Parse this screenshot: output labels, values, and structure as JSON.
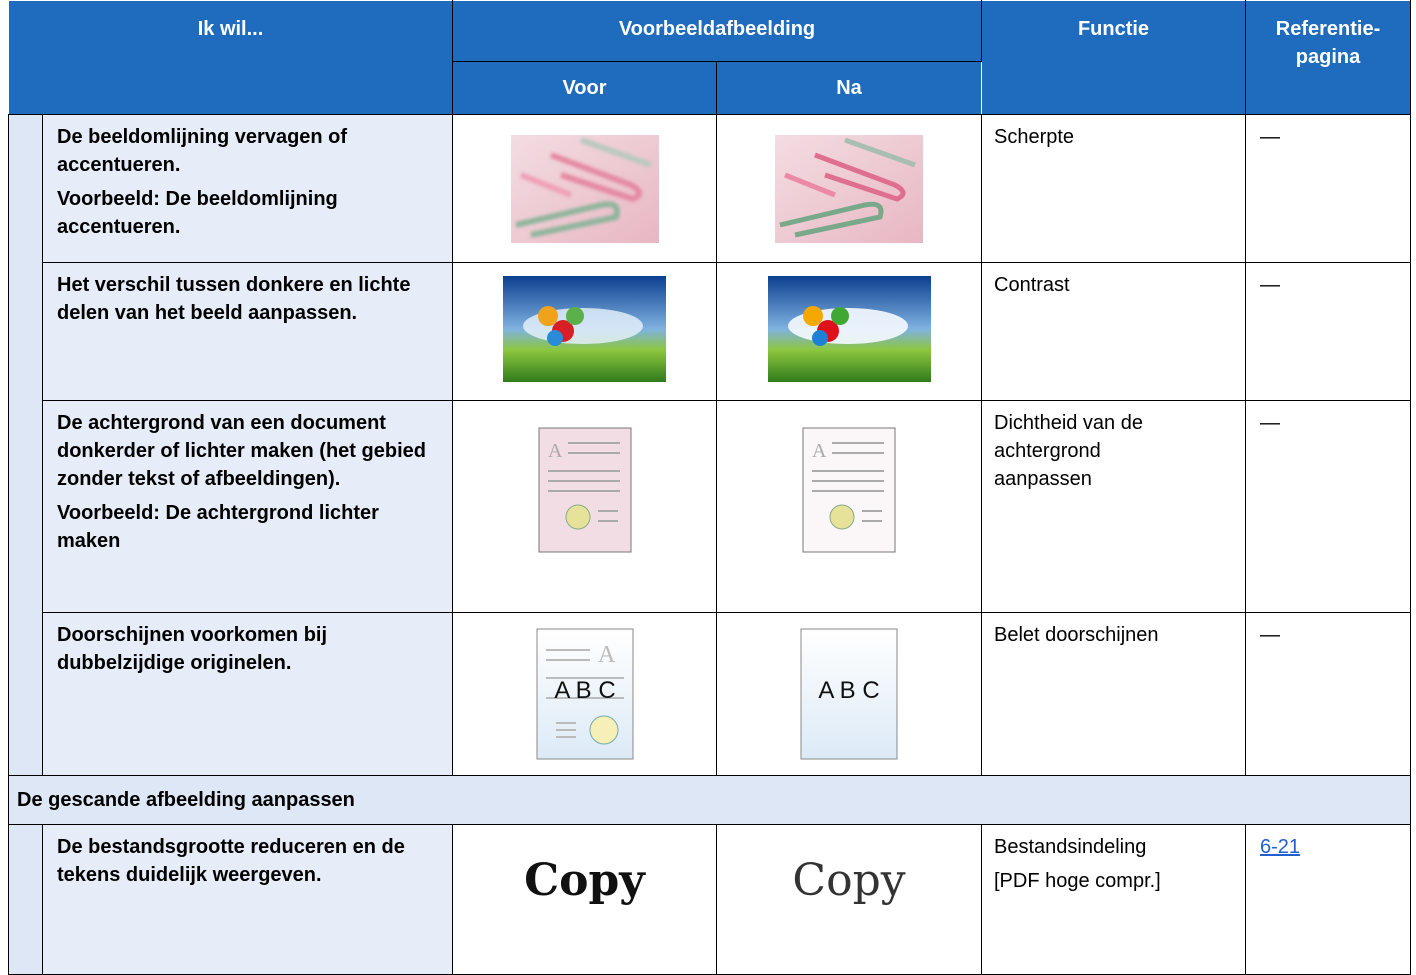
{
  "header": {
    "want": "Ik wil...",
    "example": "Voorbeeldafbeelding",
    "before": "Voor",
    "after": "Na",
    "function": "Functie",
    "reference": [
      "Referentie-",
      "pagina"
    ]
  },
  "rows": [
    {
      "want": [
        "De beeldomlijning vervagen of accentueren.",
        "Voorbeeld: De beeldomlijning accentueren."
      ],
      "function": [
        "Scherpte"
      ],
      "reference": "—"
    },
    {
      "want": [
        "Het verschil tussen donkere en lichte delen van het beeld aanpassen."
      ],
      "function": [
        "Contrast"
      ],
      "reference": "—"
    },
    {
      "want": [
        "De achtergrond van een document donkerder of lichter maken (het gebied zonder tekst of afbeeldingen).",
        "Voorbeeld: De achtergrond lichter maken"
      ],
      "function": [
        "Dichtheid van de achtergrond aanpassen"
      ],
      "reference": "—",
      "image_text": "A"
    },
    {
      "want": [
        "Doorschijnen voorkomen bij dubbelzijdige originelen."
      ],
      "function": [
        "Belet doorschijnen"
      ],
      "reference": "—",
      "image_text": [
        "A",
        "A B C"
      ]
    }
  ],
  "section": {
    "title": "De gescande afbeelding aanpassen",
    "rows": [
      {
        "want": [
          "De bestandsgrootte reduceren en de tekens duidelijk weergeven."
        ],
        "function": [
          "Bestandsindeling",
          "[PDF hoge compr.]"
        ],
        "reference": "6-21",
        "image_text": "Copy"
      }
    ]
  }
}
